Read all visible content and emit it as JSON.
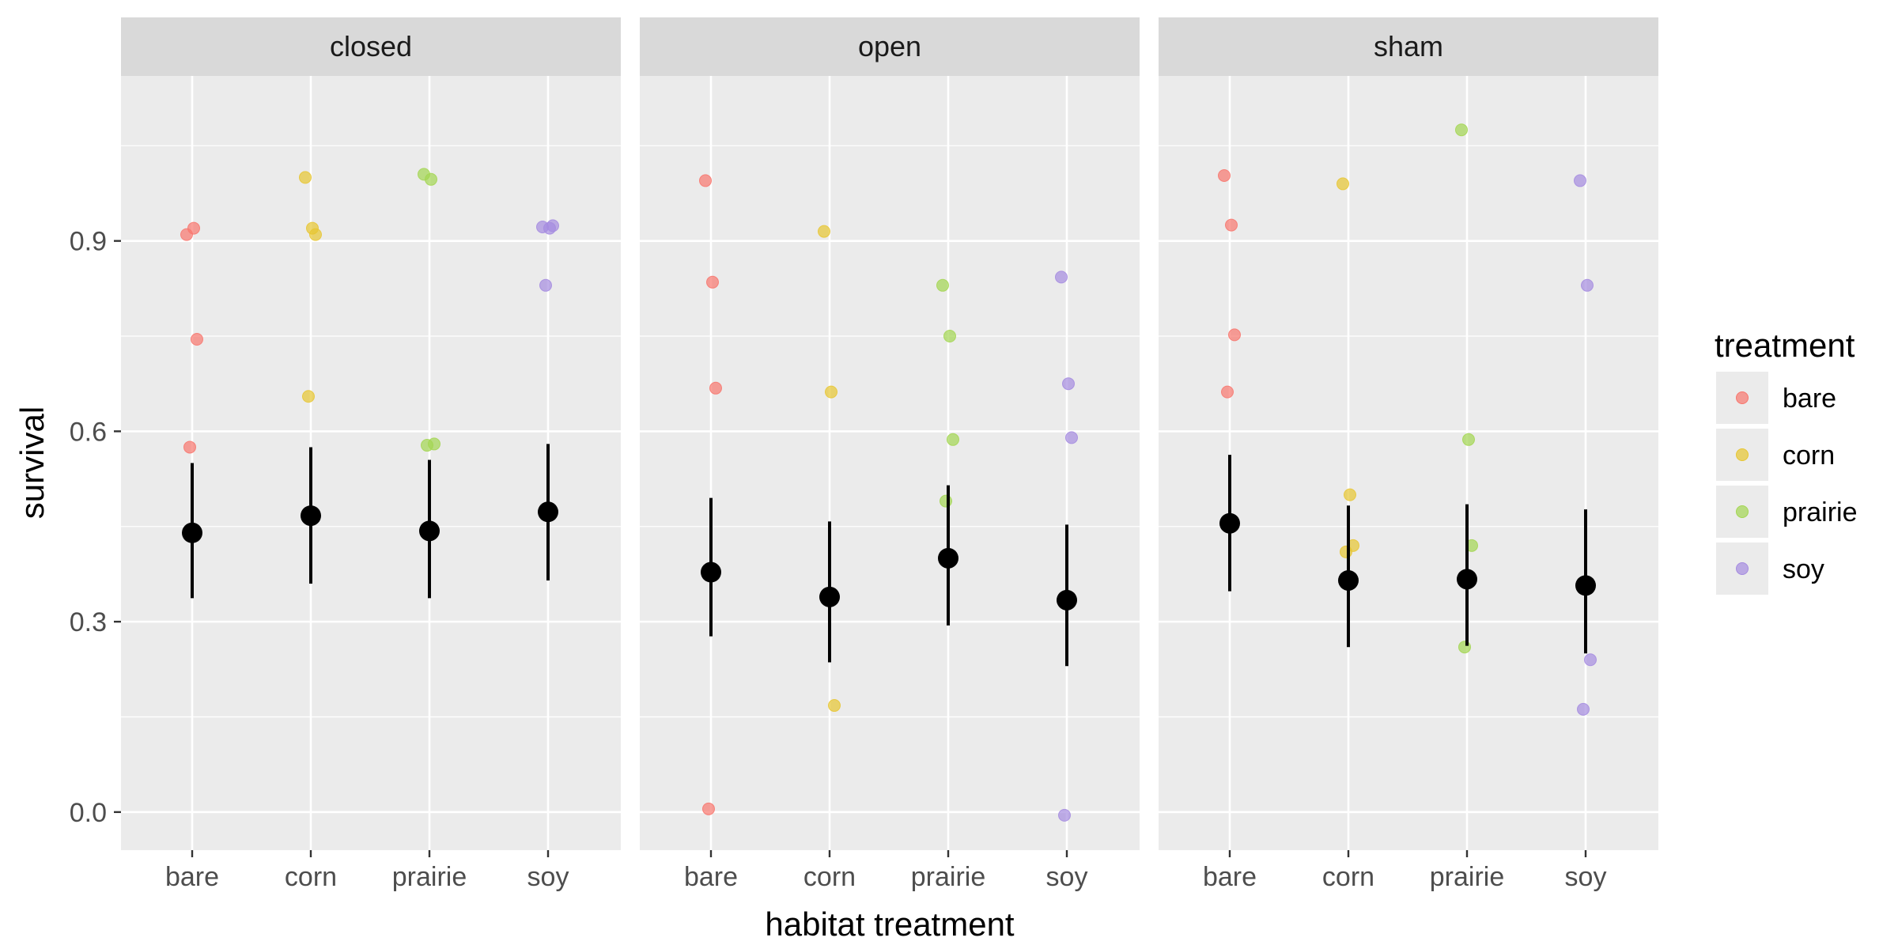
{
  "chart_data": {
    "type": "scatter",
    "xlabel": "habitat treatment",
    "ylabel": "survival",
    "categories": [
      "bare",
      "corn",
      "prairie",
      "soy"
    ],
    "ylim": [
      -0.06,
      1.16
    ],
    "yticks": [
      0.0,
      0.3,
      0.6,
      0.9
    ],
    "ytick_labels": [
      "0.0",
      "0.3",
      "0.6",
      "0.9"
    ],
    "grid": true,
    "legend": {
      "title": "treatment",
      "position": "right",
      "entries": [
        {
          "name": "bare",
          "color": "#f8766d"
        },
        {
          "name": "corn",
          "color": "#e7c631"
        },
        {
          "name": "prairie",
          "color": "#a3d651"
        },
        {
          "name": "soy",
          "color": "#a58be0"
        }
      ]
    },
    "panels": [
      {
        "label": "closed",
        "points": [
          {
            "x": "bare",
            "y": [
              0.91,
              0.92,
              0.745,
              0.575
            ]
          },
          {
            "x": "corn",
            "y": [
              1.0,
              0.92,
              0.91,
              0.655
            ]
          },
          {
            "x": "prairie",
            "y": [
              1.005,
              0.997,
              0.58,
              0.578
            ]
          },
          {
            "x": "soy",
            "y": [
              0.922,
              0.92,
              0.924,
              0.83
            ]
          }
        ],
        "means": [
          {
            "x": "bare",
            "mean": 0.44,
            "lower": 0.337,
            "upper": 0.55
          },
          {
            "x": "corn",
            "mean": 0.467,
            "lower": 0.36,
            "upper": 0.575
          },
          {
            "x": "prairie",
            "mean": 0.443,
            "lower": 0.337,
            "upper": 0.555
          },
          {
            "x": "soy",
            "mean": 0.473,
            "lower": 0.365,
            "upper": 0.58
          }
        ]
      },
      {
        "label": "open",
        "points": [
          {
            "x": "bare",
            "y": [
              0.995,
              0.835,
              0.668,
              0.005
            ]
          },
          {
            "x": "corn",
            "y": [
              0.915,
              0.662,
              0.168
            ]
          },
          {
            "x": "prairie",
            "y": [
              0.83,
              0.75,
              0.587,
              0.49
            ]
          },
          {
            "x": "soy",
            "y": [
              0.843,
              0.675,
              0.59,
              -0.005
            ]
          }
        ],
        "means": [
          {
            "x": "bare",
            "mean": 0.378,
            "lower": 0.277,
            "upper": 0.495
          },
          {
            "x": "corn",
            "mean": 0.339,
            "lower": 0.236,
            "upper": 0.458
          },
          {
            "x": "prairie",
            "mean": 0.4,
            "lower": 0.294,
            "upper": 0.515
          },
          {
            "x": "soy",
            "mean": 0.334,
            "lower": 0.23,
            "upper": 0.453
          }
        ]
      },
      {
        "label": "sham",
        "points": [
          {
            "x": "bare",
            "y": [
              1.003,
              0.925,
              0.752,
              0.662
            ]
          },
          {
            "x": "corn",
            "y": [
              0.99,
              0.5,
              0.42,
              0.41
            ]
          },
          {
            "x": "prairie",
            "y": [
              1.075,
              0.587,
              0.42,
              0.26
            ]
          },
          {
            "x": "soy",
            "y": [
              0.995,
              0.83,
              0.24,
              0.162
            ]
          }
        ],
        "means": [
          {
            "x": "bare",
            "mean": 0.455,
            "lower": 0.348,
            "upper": 0.563
          },
          {
            "x": "corn",
            "mean": 0.365,
            "lower": 0.26,
            "upper": 0.483
          },
          {
            "x": "prairie",
            "mean": 0.367,
            "lower": 0.262,
            "upper": 0.485
          },
          {
            "x": "soy",
            "mean": 0.357,
            "lower": 0.25,
            "upper": 0.477
          }
        ]
      }
    ]
  }
}
